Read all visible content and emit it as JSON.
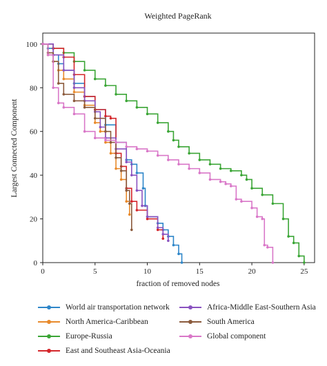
{
  "chart_data": {
    "type": "line",
    "title": "Weighted PageRank",
    "xlabel": "fraction of removed nodes",
    "ylabel": "Largest Connected Component",
    "xlim": [
      0,
      26
    ],
    "ylim": [
      0,
      105
    ],
    "xticks": [
      0,
      5,
      10,
      15,
      20,
      25
    ],
    "yticks": [
      0,
      20,
      40,
      60,
      80,
      100
    ],
    "grid": false,
    "legend_position": "bottom",
    "series": [
      {
        "name": "World air transportation network",
        "color": "#2e86c9",
        "points": [
          [
            0,
            100
          ],
          [
            0.5,
            98
          ],
          [
            1,
            95
          ],
          [
            1.5,
            91
          ],
          [
            2,
            88
          ],
          [
            3,
            82
          ],
          [
            4,
            76
          ],
          [
            5,
            70
          ],
          [
            6,
            63
          ],
          [
            7,
            55
          ],
          [
            8,
            47
          ],
          [
            8.5,
            45
          ],
          [
            9,
            41
          ],
          [
            9.6,
            34
          ],
          [
            9.8,
            26
          ],
          [
            10,
            21
          ],
          [
            11,
            18
          ],
          [
            11.5,
            15
          ],
          [
            12,
            12
          ],
          [
            12.5,
            8
          ],
          [
            13,
            4
          ],
          [
            13.3,
            0
          ]
        ]
      },
      {
        "name": "North America-Caribbean",
        "color": "#e8892a",
        "points": [
          [
            0,
            100
          ],
          [
            0.5,
            95
          ],
          [
            1,
            92
          ],
          [
            1.5,
            88
          ],
          [
            2,
            84
          ],
          [
            3,
            78
          ],
          [
            4,
            72
          ],
          [
            5,
            64
          ],
          [
            5.5,
            60
          ],
          [
            6,
            55
          ],
          [
            6.5,
            50
          ],
          [
            7,
            43
          ],
          [
            7.5,
            38
          ],
          [
            8,
            28
          ],
          [
            8.3,
            22
          ]
        ]
      },
      {
        "name": "Europe-Russia",
        "color": "#3aa535",
        "points": [
          [
            0,
            100
          ],
          [
            1,
            98
          ],
          [
            2,
            96
          ],
          [
            3,
            92
          ],
          [
            4,
            88
          ],
          [
            5,
            84
          ],
          [
            6,
            81
          ],
          [
            7,
            77
          ],
          [
            8,
            74
          ],
          [
            9,
            71
          ],
          [
            10,
            68
          ],
          [
            11,
            64
          ],
          [
            12,
            60
          ],
          [
            12.5,
            56
          ],
          [
            13,
            53
          ],
          [
            14,
            50
          ],
          [
            15,
            47
          ],
          [
            16,
            45
          ],
          [
            17,
            43
          ],
          [
            18,
            42
          ],
          [
            19,
            40
          ],
          [
            19.5,
            38
          ],
          [
            20,
            34
          ],
          [
            21,
            31
          ],
          [
            22,
            27
          ],
          [
            23,
            20
          ],
          [
            23.5,
            12
          ],
          [
            24,
            9
          ],
          [
            24.5,
            3
          ],
          [
            25,
            0
          ]
        ]
      },
      {
        "name": "East and Southeast Asia-Oceania",
        "color": "#d4252a",
        "points": [
          [
            0,
            100
          ],
          [
            1,
            98
          ],
          [
            2,
            94
          ],
          [
            3,
            86
          ],
          [
            4,
            76
          ],
          [
            5,
            70
          ],
          [
            6,
            67
          ],
          [
            6.5,
            66
          ],
          [
            7,
            50
          ],
          [
            7.5,
            44
          ],
          [
            8,
            34
          ],
          [
            8.5,
            28
          ],
          [
            9,
            24
          ],
          [
            10,
            20
          ],
          [
            11,
            15
          ],
          [
            11.5,
            11
          ]
        ]
      },
      {
        "name": "Africa-Middle East-Southern Asia",
        "color": "#8a52c0",
        "points": [
          [
            0,
            100
          ],
          [
            1,
            95
          ],
          [
            2,
            88
          ],
          [
            3,
            80
          ],
          [
            4,
            74
          ],
          [
            5,
            69
          ],
          [
            5.5,
            62
          ],
          [
            6,
            57
          ],
          [
            7,
            52
          ],
          [
            8,
            46
          ],
          [
            8.5,
            40
          ],
          [
            9,
            33
          ],
          [
            9.5,
            26
          ],
          [
            10,
            21
          ],
          [
            11,
            16
          ],
          [
            11.5,
            13
          ],
          [
            12,
            10
          ]
        ]
      },
      {
        "name": "South America",
        "color": "#8b5a3c",
        "points": [
          [
            0,
            100
          ],
          [
            0.5,
            96
          ],
          [
            1,
            92
          ],
          [
            1.5,
            82
          ],
          [
            2,
            77
          ],
          [
            3,
            74
          ],
          [
            4,
            71
          ],
          [
            5,
            66
          ],
          [
            6,
            60
          ],
          [
            6.5,
            55
          ],
          [
            7,
            48
          ],
          [
            7.5,
            42
          ],
          [
            8,
            33
          ],
          [
            8.3,
            27
          ],
          [
            8.5,
            15
          ]
        ]
      },
      {
        "name": "Global component",
        "color": "#d977c8",
        "points": [
          [
            0,
            100
          ],
          [
            0.5,
            95
          ],
          [
            1,
            80
          ],
          [
            1.5,
            73
          ],
          [
            2,
            71
          ],
          [
            3,
            68
          ],
          [
            4,
            60
          ],
          [
            5,
            57
          ],
          [
            6,
            56
          ],
          [
            7,
            55
          ],
          [
            8,
            53
          ],
          [
            9,
            52
          ],
          [
            10,
            51
          ],
          [
            11,
            49
          ],
          [
            12,
            47
          ],
          [
            13,
            45
          ],
          [
            14,
            43
          ],
          [
            15,
            41
          ],
          [
            16,
            38
          ],
          [
            17,
            37
          ],
          [
            17.5,
            36
          ],
          [
            18,
            35
          ],
          [
            18.5,
            29
          ],
          [
            19,
            28
          ],
          [
            20,
            25
          ],
          [
            20.5,
            21
          ],
          [
            21,
            20
          ],
          [
            21.2,
            8
          ],
          [
            21.5,
            7
          ],
          [
            22,
            0
          ]
        ]
      }
    ]
  },
  "legend": {
    "items": [
      "World air transportation network",
      "Africa-Middle East-Southern Asia",
      "North America-Caribbean",
      "South America",
      "Europe-Russia",
      "Global component",
      "East and Southeast Asia-Oceania"
    ]
  }
}
